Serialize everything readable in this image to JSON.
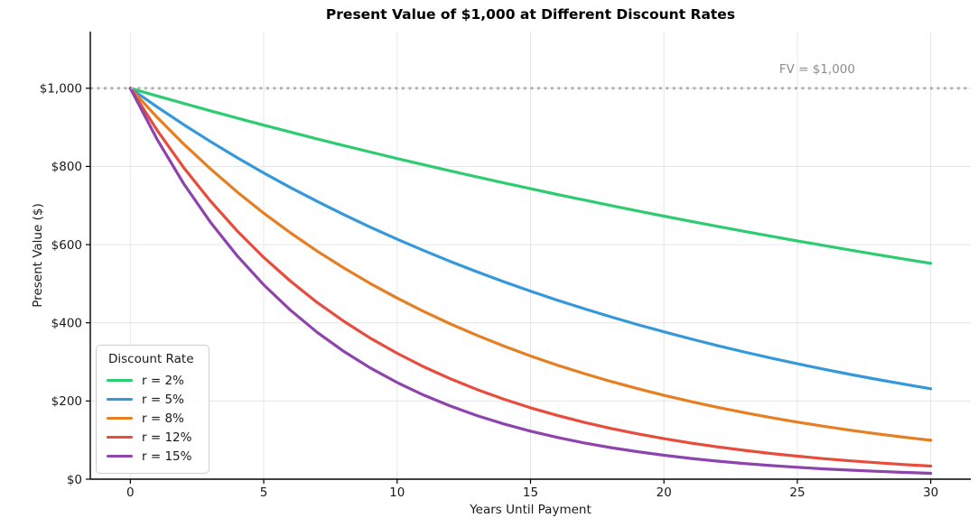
{
  "chart_data": {
    "type": "line",
    "title": "Present Value of $1,000 at Different Discount Rates",
    "xlabel": "Years Until Payment",
    "ylabel": "Present Value ($)",
    "x": [
      0,
      1,
      2,
      3,
      4,
      5,
      6,
      7,
      8,
      9,
      10,
      11,
      12,
      13,
      14,
      15,
      16,
      17,
      18,
      19,
      20,
      21,
      22,
      23,
      24,
      25,
      26,
      27,
      28,
      29,
      30
    ],
    "series": [
      {
        "name": "r = 2%",
        "rate": 0.02,
        "color": "#2ecc71",
        "values": [
          1000,
          980.4,
          961.2,
          942.3,
          923.8,
          905.7,
          888.0,
          870.6,
          853.5,
          836.8,
          820.3,
          804.3,
          788.5,
          773.0,
          757.9,
          743.0,
          728.4,
          714.2,
          700.2,
          686.4,
          673.0,
          659.8,
          646.8,
          634.2,
          621.7,
          609.5,
          597.6,
          585.9,
          574.4,
          563.1,
          552.1
        ]
      },
      {
        "name": "r = 5%",
        "rate": 0.05,
        "color": "#3498db",
        "values": [
          1000,
          952.4,
          907.0,
          863.8,
          822.7,
          783.5,
          746.2,
          710.7,
          676.8,
          644.6,
          613.9,
          584.7,
          556.8,
          530.3,
          505.1,
          481.0,
          458.1,
          436.3,
          415.5,
          395.7,
          376.9,
          358.9,
          341.8,
          325.6,
          310.1,
          295.3,
          281.2,
          267.8,
          255.1,
          243.0,
          231.4
        ]
      },
      {
        "name": "r = 8%",
        "rate": 0.08,
        "color": "#e67e22",
        "values": [
          1000,
          925.9,
          857.3,
          793.8,
          735.0,
          680.6,
          630.2,
          583.5,
          540.3,
          500.2,
          463.2,
          428.9,
          397.1,
          367.7,
          340.5,
          315.2,
          291.9,
          270.3,
          250.2,
          231.7,
          214.5,
          198.7,
          183.9,
          170.3,
          157.7,
          146.0,
          135.2,
          125.2,
          115.9,
          107.3,
          99.4
        ]
      },
      {
        "name": "r = 12%",
        "rate": 0.12,
        "color": "#e74c3c",
        "values": [
          1000,
          892.9,
          797.2,
          711.8,
          635.5,
          567.4,
          506.6,
          452.3,
          403.9,
          360.6,
          322.0,
          287.5,
          256.7,
          229.2,
          204.6,
          182.7,
          163.1,
          145.6,
          130.0,
          116.1,
          103.7,
          92.6,
          82.6,
          73.8,
          65.9,
          58.8,
          52.5,
          46.9,
          41.9,
          37.4,
          33.4
        ]
      },
      {
        "name": "r = 15%",
        "rate": 0.15,
        "color": "#8e44ad",
        "values": [
          1000,
          869.6,
          756.1,
          657.5,
          571.8,
          497.2,
          432.3,
          375.9,
          326.9,
          284.3,
          247.2,
          214.9,
          186.9,
          162.5,
          141.3,
          122.9,
          106.9,
          92.9,
          80.8,
          70.3,
          61.1,
          53.1,
          46.2,
          40.2,
          34.9,
          30.4,
          26.4,
          23.0,
          20.0,
          17.4,
          15.1
        ]
      }
    ],
    "reference_line": {
      "value": 1000,
      "label": "FV = $1,000",
      "style": "dotted",
      "color": "#adadad",
      "label_color": "#8c8c8c"
    },
    "xticks": [
      0,
      5,
      10,
      15,
      20,
      25,
      30
    ],
    "xtick_labels": [
      "0",
      "5",
      "10",
      "15",
      "20",
      "25",
      "30"
    ],
    "yticks": [
      0,
      200,
      400,
      600,
      800,
      1000
    ],
    "ytick_labels": [
      "$0",
      "$200",
      "$400",
      "$600",
      "$800",
      "$1,000"
    ],
    "xlim": [
      -1.5,
      31.5
    ],
    "ylim": [
      0,
      1145
    ],
    "grid": true,
    "grid_color": "#e6e6e6",
    "legend": {
      "title": "Discount Rate",
      "position": "lower left"
    }
  }
}
